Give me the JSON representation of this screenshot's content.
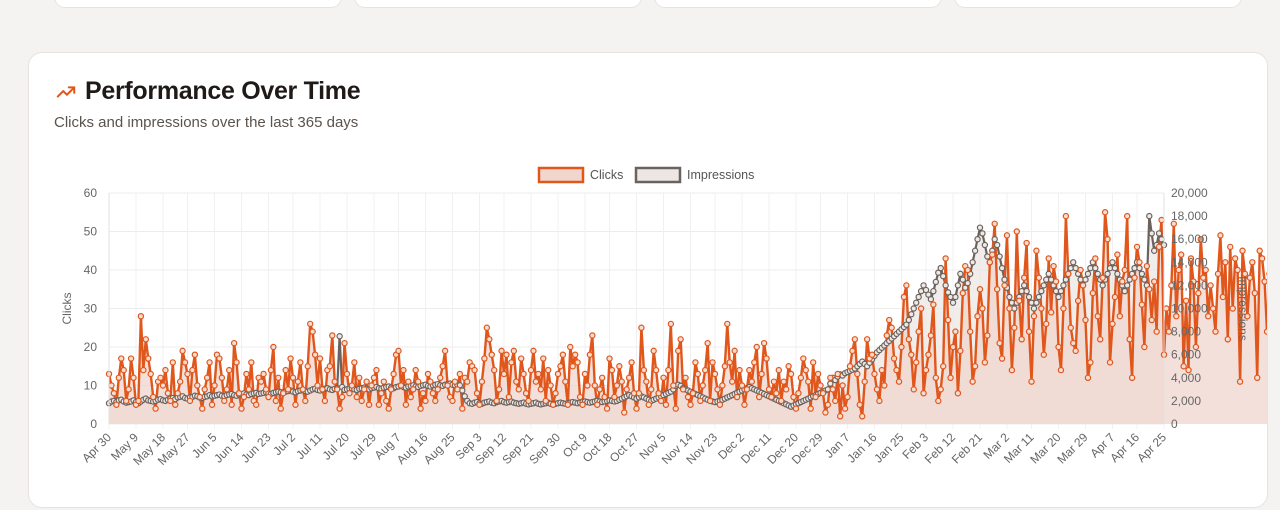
{
  "header": {
    "title": "Performance Over Time",
    "subtitle": "Clicks and impressions over the last 365 days",
    "icon": "trending-up-icon"
  },
  "colors": {
    "clicks_line": "#e0561b",
    "clicks_fill": "#f0d6cd",
    "impressions_line": "#6b625e",
    "impressions_fill": "#ece7e4"
  },
  "chart_data": {
    "type": "line",
    "legend": "top",
    "grid": true,
    "x_ticks": [
      "Apr 30",
      "May 9",
      "May 18",
      "May 27",
      "Jun 5",
      "Jun 14",
      "Jun 23",
      "Jul 2",
      "Jul 11",
      "Jul 20",
      "Jul 29",
      "Aug 7",
      "Aug 16",
      "Aug 25",
      "Sep 3",
      "Sep 12",
      "Sep 21",
      "Sep 30",
      "Oct 9",
      "Oct 18",
      "Oct 27",
      "Nov 5",
      "Nov 14",
      "Nov 23",
      "Dec 2",
      "Dec 11",
      "Dec 20",
      "Dec 29",
      "Jan 7",
      "Jan 16",
      "Jan 25",
      "Feb 3",
      "Feb 12",
      "Feb 21",
      "Mar 2",
      "Mar 11",
      "Mar 20",
      "Mar 29",
      "Apr 7",
      "Apr 16",
      "Apr 25"
    ],
    "y_left": {
      "label": "Clicks",
      "ylim": [
        0,
        60
      ],
      "ticks": [
        "0",
        "10",
        "20",
        "30",
        "40",
        "50",
        "60"
      ]
    },
    "y_right": {
      "label": "Impressions",
      "ylim": [
        0,
        20000
      ],
      "ticks": [
        "0",
        "2,000",
        "4,000",
        "6,000",
        "8,000",
        "10,000",
        "12,000",
        "14,000",
        "16,000",
        "18,000",
        "20,000"
      ]
    },
    "series": [
      {
        "name": "Clicks",
        "axis": "left",
        "values": [
          13,
          10,
          8,
          5,
          12,
          17,
          14,
          6,
          9,
          17,
          12,
          5,
          6,
          28,
          14,
          22,
          17,
          13,
          7,
          4,
          11,
          12,
          10,
          14,
          8,
          6,
          16,
          5,
          8,
          11,
          19,
          16,
          13,
          6,
          14,
          18,
          10,
          7,
          4,
          9,
          12,
          16,
          5,
          10,
          18,
          17,
          12,
          6,
          9,
          14,
          5,
          21,
          16,
          8,
          4,
          7,
          13,
          9,
          16,
          6,
          5,
          12,
          11,
          13,
          9,
          7,
          14,
          20,
          6,
          12,
          4,
          8,
          14,
          9,
          17,
          12,
          5,
          11,
          16,
          9,
          6,
          15,
          26,
          24,
          18,
          10,
          17,
          9,
          6,
          14,
          15,
          23,
          11,
          9,
          4,
          7,
          21,
          13,
          8,
          10,
          16,
          7,
          12,
          6,
          9,
          11,
          5,
          10,
          12,
          14,
          5,
          8,
          11,
          6,
          4,
          9,
          13,
          18,
          19,
          10,
          14,
          5,
          11,
          7,
          9,
          14,
          11,
          4,
          8,
          6,
          13,
          11,
          8,
          6,
          9,
          12,
          15,
          19,
          10,
          7,
          6,
          11,
          9,
          13,
          4,
          12,
          11,
          16,
          15,
          14,
          8,
          5,
          11,
          17,
          25,
          22,
          18,
          14,
          6,
          9,
          19,
          13,
          18,
          7,
          16,
          19,
          11,
          9,
          17,
          13,
          8,
          6,
          14,
          19,
          11,
          13,
          9,
          17,
          6,
          14,
          10,
          5,
          8,
          13,
          15,
          18,
          11,
          5,
          20,
          15,
          18,
          16,
          7,
          5,
          13,
          10,
          18,
          23,
          10,
          5,
          9,
          12,
          7,
          4,
          17,
          14,
          7,
          10,
          15,
          11,
          3,
          9,
          12,
          16,
          8,
          4,
          8,
          25,
          14,
          11,
          5,
          9,
          19,
          14,
          8,
          6,
          12,
          5,
          14,
          26,
          10,
          4,
          19,
          22,
          9,
          12,
          7,
          5,
          8,
          16,
          13,
          6,
          10,
          14,
          21,
          6,
          16,
          13,
          9,
          5,
          10,
          15,
          26,
          16,
          11,
          19,
          7,
          14,
          10,
          5,
          9,
          14,
          11,
          16,
          20,
          7,
          13,
          21,
          17,
          9,
          7,
          11,
          8,
          14,
          6,
          11,
          9,
          15,
          13,
          7,
          4,
          8,
          12,
          17,
          14,
          11,
          4,
          16,
          7,
          13,
          10,
          8,
          3,
          5,
          12,
          9,
          6,
          13,
          2,
          10,
          4,
          7,
          15,
          19,
          22,
          13,
          5,
          2,
          11,
          22,
          17,
          18,
          13,
          9,
          6,
          14,
          10,
          23,
          27,
          25,
          17,
          14,
          11,
          20,
          33,
          36,
          22,
          18,
          9,
          16,
          24,
          30,
          8,
          14,
          18,
          23,
          31,
          12,
          6,
          9,
          15,
          43,
          27,
          12,
          20,
          24,
          8,
          19,
          34,
          41,
          40,
          24,
          11,
          15,
          28,
          35,
          30,
          16,
          23,
          42,
          44,
          52,
          35,
          21,
          17,
          36,
          49,
          30,
          14,
          25,
          50,
          32,
          22,
          38,
          47,
          24,
          11,
          28,
          45,
          38,
          30,
          18,
          26,
          43,
          29,
          41,
          37,
          20,
          14,
          30,
          54,
          39,
          25,
          21,
          19,
          32,
          40,
          36,
          27,
          12,
          16,
          34,
          43,
          28,
          22,
          38,
          55,
          48,
          16,
          26,
          33,
          44,
          28,
          37,
          40,
          54,
          22,
          12,
          38,
          46,
          42,
          31,
          20,
          41,
          35,
          27,
          37,
          24,
          46,
          53,
          18,
          30,
          24,
          36,
          52,
          28,
          40,
          44,
          15,
          32,
          14,
          43,
          37,
          20,
          34,
          48,
          38,
          40,
          28,
          36,
          30,
          24,
          39,
          49,
          33,
          42,
          22,
          46,
          30,
          43,
          40,
          11,
          45,
          39,
          28,
          38,
          42,
          34,
          12,
          45,
          43,
          37,
          24,
          39,
          30,
          40,
          37
        ],
        "thinned": true
      },
      {
        "name": "Impressions",
        "axis": "right",
        "values": [
          1800,
          1950,
          2000,
          1900,
          2050,
          2100,
          1950,
          1850,
          1900,
          1950,
          2050,
          1900,
          1800,
          1950,
          2100,
          2200,
          2050,
          2000,
          1950,
          2000,
          2100,
          2150,
          2050,
          2000,
          2100,
          2200,
          2250,
          2150,
          2300,
          2350,
          2400,
          2250,
          2200,
          2300,
          2350,
          2450,
          2400,
          2300,
          2250,
          2350,
          2400,
          2500,
          2400,
          2450,
          2500,
          2550,
          2450,
          2400,
          2500,
          2550,
          2600,
          2500,
          2450,
          2550,
          2600,
          2650,
          2550,
          2500,
          2600,
          2650,
          2700,
          2600,
          2650,
          2700,
          2750,
          2650,
          2600,
          2700,
          2750,
          2800,
          2750,
          2700,
          2800,
          2850,
          2900,
          2800,
          2750,
          2850,
          2900,
          2950,
          2850,
          2800,
          2900,
          3000,
          3050,
          2950,
          2900,
          3000,
          3050,
          3100,
          3000,
          2950,
          3050,
          3100,
          7600,
          3200,
          2950,
          3000,
          3050,
          3100,
          3000,
          2950,
          3050,
          3100,
          3150,
          3050,
          3000,
          3100,
          3150,
          3200,
          3100,
          3050,
          3150,
          3200,
          3250,
          3150,
          3100,
          3200,
          3250,
          3300,
          3200,
          3150,
          3250,
          3300,
          3350,
          3250,
          3200,
          3300,
          3350,
          3400,
          3300,
          3250,
          3350,
          3400,
          3450,
          3350,
          3300,
          3400,
          3450,
          3500,
          3400,
          3350,
          3400,
          3350,
          2900,
          2400,
          2000,
          1800,
          1750,
          1850,
          1900,
          1800,
          1750,
          1850,
          1900,
          1950,
          1850,
          1800,
          1900,
          1950,
          2000,
          1900,
          1850,
          1900,
          1950,
          1850,
          1800,
          1750,
          1800,
          1850,
          1750,
          1700,
          1750,
          1800,
          1850,
          1750,
          1700,
          1750,
          1800,
          1850,
          1750,
          1700,
          1750,
          1800,
          1850,
          1800,
          1750,
          1800,
          1850,
          1900,
          1850,
          1800,
          1850,
          1900,
          1950,
          1900,
          1850,
          1900,
          1950,
          2000,
          1950,
          1900,
          1950,
          2000,
          2050,
          2000,
          1950,
          2000,
          2100,
          2200,
          2300,
          2400,
          2500,
          2400,
          2300,
          2200,
          2300,
          2400,
          2300,
          2200,
          2100,
          2000,
          2100,
          2200,
          2300,
          2400,
          2500,
          2600,
          2700,
          2800,
          3000,
          3300,
          3400,
          3300,
          3100,
          3000,
          2900,
          2800,
          2700,
          2600,
          2500,
          2400,
          2300,
          2200,
          2100,
          2000,
          1950,
          1900,
          1950,
          2000,
          2100,
          2200,
          2300,
          2400,
          2500,
          2600,
          2700,
          2800,
          2900,
          3000,
          3100,
          3200,
          3100,
          3000,
          2900,
          2800,
          2700,
          2600,
          2500,
          2400,
          2300,
          2200,
          2100,
          2000,
          1900,
          1800,
          1700,
          1600,
          1500,
          1600,
          1700,
          1800,
          1900,
          2000,
          2100,
          2200,
          2300,
          2400,
          2500,
          2600,
          2700,
          2800,
          2900,
          3000,
          3500,
          4000,
          3800,
          4100,
          4300,
          4200,
          4400,
          4500,
          4600,
          4700,
          4800,
          5000,
          5200,
          5400,
          5200,
          5000,
          5300,
          5600,
          5900,
          6200,
          6400,
          6600,
          6800,
          7000,
          7200,
          7400,
          7600,
          7800,
          8000,
          8200,
          8400,
          8600,
          9000,
          9500,
          10000,
          10500,
          11000,
          11500,
          12000,
          11600,
          11200,
          10800,
          11500,
          12300,
          13100,
          13500,
          12800,
          12000,
          11400,
          11000,
          10500,
          11000,
          12000,
          13000,
          12500,
          11800,
          12200,
          13000,
          14000,
          15000,
          16000,
          17000,
          16500,
          15500,
          14500,
          14000,
          15000,
          16000,
          15500,
          14500,
          13500,
          12500,
          11800,
          11000,
          10500,
          10000,
          10500,
          11000,
          11500,
          12000,
          11500,
          11000,
          10500,
          10000,
          10500,
          11000,
          11500,
          12000,
          12500,
          13000,
          12500,
          12000,
          11500,
          11000,
          11500,
          12000,
          12500,
          13000,
          13500,
          14000,
          13500,
          13000,
          12500,
          12000,
          12500,
          13000,
          13500,
          14000,
          13500,
          13000,
          12500,
          12000,
          12500,
          13000,
          13500,
          14000,
          13500,
          13000,
          12500,
          12000,
          11500,
          12000,
          12500,
          13000,
          13500,
          14000,
          13500,
          13000,
          12500,
          12000,
          18000,
          16500,
          15000,
          15500,
          16500,
          16000,
          15500
        ]
      }
    ]
  }
}
